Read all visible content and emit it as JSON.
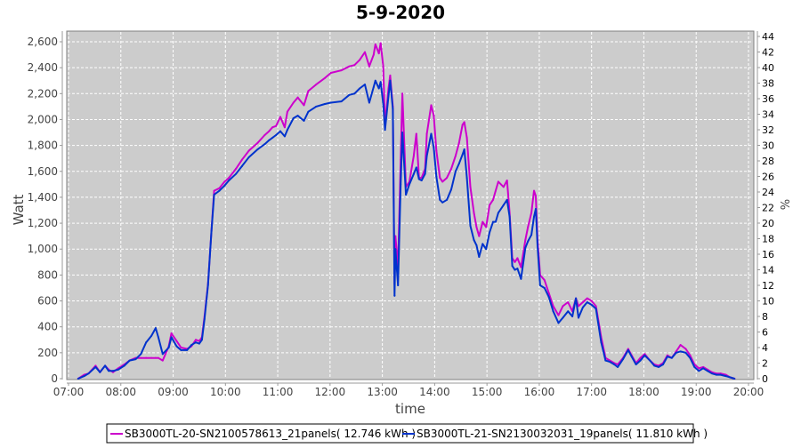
{
  "chart_data": {
    "type": "line",
    "title": "5-9-2020",
    "xlabel": "time",
    "ylabel": "Watt",
    "y2label": "%",
    "xlim": [
      "07:00",
      "20:00"
    ],
    "ylim": [
      0,
      2680
    ],
    "y2lim": [
      0,
      44
    ],
    "grid": true,
    "legend_position": "bottom",
    "x_ticks": [
      "07:00",
      "08:00",
      "09:00",
      "10:00",
      "11:00",
      "12:00",
      "13:00",
      "14:00",
      "15:00",
      "16:00",
      "17:00",
      "18:00",
      "19:00",
      "20:00"
    ],
    "y_ticks": [
      0,
      200,
      400,
      600,
      800,
      1000,
      1200,
      1400,
      1600,
      1800,
      2000,
      2200,
      2400,
      2600
    ],
    "y_tick_labels": [
      "0",
      "200",
      "400",
      "600",
      "800",
      "1,000",
      "1,200",
      "1,400",
      "1,600",
      "1,800",
      "2,000",
      "2,200",
      "2,400",
      "2,600"
    ],
    "y2_ticks": [
      "0",
      "2",
      "4",
      "6",
      "8",
      "10",
      "12",
      "14",
      "16",
      "18",
      "20",
      "22",
      "24",
      "26",
      "28",
      "30",
      "32",
      "34",
      "36",
      "38",
      "40",
      "42",
      "44"
    ],
    "x": [
      "07:11",
      "07:18",
      "07:23",
      "07:31",
      "07:36",
      "07:42",
      "07:46",
      "07:51",
      "07:57",
      "08:04",
      "08:10",
      "08:17",
      "08:23",
      "08:29",
      "08:35",
      "08:40",
      "08:43",
      "08:48",
      "08:55",
      "08:58",
      "09:04",
      "09:09",
      "09:16",
      "09:21",
      "09:26",
      "09:30",
      "09:33",
      "09:36",
      "09:40",
      "09:44",
      "09:47",
      "09:53",
      "09:59",
      "10:04",
      "10:12",
      "10:19",
      "10:27",
      "10:37",
      "10:45",
      "10:50",
      "10:54",
      "10:58",
      "11:03",
      "11:08",
      "11:11",
      "11:18",
      "11:23",
      "11:30",
      "11:35",
      "11:44",
      "11:54",
      "12:01",
      "12:13",
      "12:22",
      "12:28",
      "12:34",
      "12:40",
      "12:45",
      "12:50",
      "12:52",
      "12:56",
      "12:58",
      "13:01",
      "13:03",
      "13:07",
      "13:09",
      "13:12",
      "13:14",
      "13:15",
      "13:18",
      "13:21",
      "13:23",
      "13:27",
      "13:31",
      "13:36",
      "13:39",
      "13:42",
      "13:45",
      "13:49",
      "13:51",
      "13:56",
      "13:59",
      "14:02",
      "14:06",
      "14:09",
      "14:14",
      "14:19",
      "14:24",
      "14:28",
      "14:32",
      "14:34",
      "14:37",
      "14:41",
      "14:45",
      "14:48",
      "14:51",
      "14:55",
      "14:59",
      "15:03",
      "15:07",
      "15:10",
      "15:13",
      "15:19",
      "15:23",
      "15:26",
      "15:29",
      "15:32",
      "15:35",
      "15:39",
      "15:44",
      "15:47",
      "15:51",
      "15:54",
      "15:56",
      "15:58",
      "16:01",
      "16:06",
      "16:11",
      "16:16",
      "16:22",
      "16:27",
      "16:33",
      "16:38",
      "16:42",
      "16:45",
      "16:50",
      "16:55",
      "17:00",
      "17:05",
      "17:11",
      "17:16",
      "17:21",
      "17:26",
      "17:30",
      "17:36",
      "17:42",
      "17:46",
      "17:51",
      "17:56",
      "18:01",
      "18:07",
      "18:12",
      "18:17",
      "18:22",
      "18:27",
      "18:32",
      "18:37",
      "18:42",
      "18:48",
      "18:53",
      "18:58",
      "19:03",
      "19:08",
      "19:13",
      "19:18",
      "19:23",
      "19:28",
      "19:34",
      "19:39",
      "19:44"
    ],
    "series": [
      {
        "name": "SB3000TL-20-SN2100578613_21panels( 12.746 kWh )",
        "color": "#cc00cc",
        "values": [
          0,
          30,
          40,
          100,
          50,
          100,
          70,
          50,
          80,
          110,
          140,
          160,
          160,
          160,
          160,
          160,
          160,
          140,
          250,
          350,
          290,
          240,
          230,
          250,
          300,
          290,
          320,
          480,
          730,
          1140,
          1450,
          1470,
          1520,
          1550,
          1620,
          1690,
          1760,
          1820,
          1880,
          1910,
          1940,
          1950,
          2020,
          1940,
          2060,
          2130,
          2170,
          2110,
          2220,
          2270,
          2320,
          2360,
          2380,
          2410,
          2420,
          2460,
          2520,
          2410,
          2500,
          2580,
          2510,
          2590,
          2410,
          1960,
          2240,
          2340,
          2100,
          730,
          1100,
          860,
          1690,
          2200,
          1480,
          1520,
          1720,
          1890,
          1550,
          1550,
          1620,
          1890,
          2110,
          2030,
          1760,
          1550,
          1520,
          1550,
          1620,
          1720,
          1820,
          1960,
          1980,
          1860,
          1480,
          1280,
          1170,
          1100,
          1210,
          1170,
          1340,
          1380,
          1450,
          1520,
          1480,
          1530,
          1280,
          930,
          900,
          930,
          860,
          1070,
          1170,
          1280,
          1450,
          1410,
          1070,
          800,
          760,
          660,
          560,
          490,
          560,
          590,
          520,
          620,
          560,
          590,
          620,
          600,
          560,
          320,
          160,
          140,
          120,
          110,
          160,
          230,
          180,
          120,
          160,
          190,
          140,
          110,
          100,
          120,
          180,
          160,
          210,
          260,
          230,
          180,
          110,
          80,
          90,
          70,
          50,
          40,
          40,
          30,
          10,
          0
        ]
      },
      {
        "name": "SB3000TL-21-SN2130032031_19panels( 11.810 kWh )",
        "color": "#0033cc",
        "values": [
          0,
          20,
          40,
          90,
          50,
          100,
          60,
          60,
          70,
          100,
          140,
          150,
          190,
          280,
          330,
          390,
          320,
          190,
          240,
          320,
          250,
          220,
          220,
          260,
          280,
          270,
          300,
          460,
          720,
          1140,
          1420,
          1450,
          1490,
          1530,
          1580,
          1640,
          1710,
          1770,
          1810,
          1840,
          1860,
          1880,
          1910,
          1870,
          1920,
          2010,
          2030,
          1990,
          2060,
          2100,
          2120,
          2130,
          2140,
          2190,
          2200,
          2240,
          2270,
          2130,
          2250,
          2300,
          2240,
          2290,
          2120,
          1920,
          2180,
          2300,
          2080,
          640,
          1000,
          720,
          1500,
          1900,
          1420,
          1500,
          1580,
          1630,
          1540,
          1530,
          1580,
          1720,
          1890,
          1780,
          1560,
          1380,
          1360,
          1380,
          1460,
          1600,
          1660,
          1730,
          1770,
          1550,
          1180,
          1070,
          1030,
          940,
          1040,
          1000,
          1130,
          1210,
          1210,
          1280,
          1340,
          1380,
          1250,
          870,
          840,
          850,
          770,
          1010,
          1060,
          1110,
          1250,
          1310,
          1020,
          720,
          700,
          630,
          520,
          430,
          470,
          520,
          480,
          620,
          470,
          550,
          590,
          570,
          540,
          280,
          140,
          130,
          110,
          90,
          150,
          220,
          170,
          110,
          140,
          180,
          140,
          100,
          90,
          110,
          170,
          160,
          200,
          210,
          200,
          160,
          90,
          60,
          80,
          60,
          40,
          30,
          30,
          20,
          10,
          0
        ]
      }
    ]
  }
}
